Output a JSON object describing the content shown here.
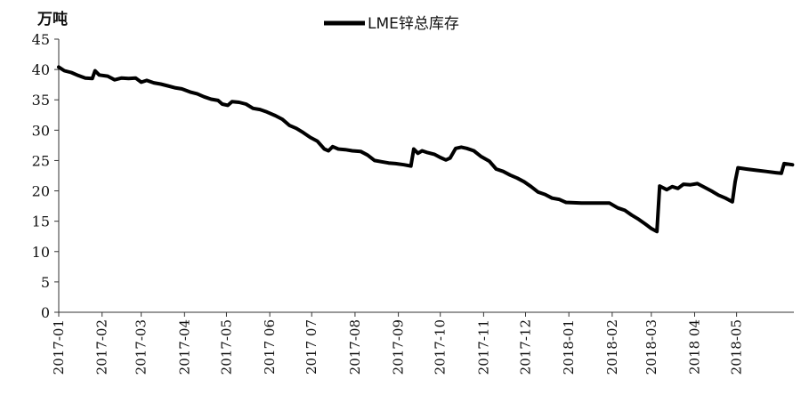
{
  "chart_data": {
    "type": "line",
    "unit_label": "万吨",
    "ylim": [
      0,
      45
    ],
    "y_ticks": [
      0,
      5,
      10,
      15,
      20,
      25,
      30,
      35,
      40,
      45
    ],
    "x_tick_labels": [
      "2017-01",
      "2017-02",
      "2017-03",
      "2017-04",
      "2017-05",
      "2017 06",
      "2017 07",
      "2017-08",
      "2017-09",
      "2017-10",
      "2017-11",
      "2017-12",
      "2018-01",
      "2018-02",
      "2018-03",
      "2018 04",
      "2018-05"
    ],
    "legend": {
      "position": "top-center",
      "entries": [
        "LME锌总库存"
      ]
    },
    "grid": false,
    "series": [
      {
        "name": "LME锌总库存",
        "color": "#000000",
        "points": [
          [
            "2017-01-01",
            40.4
          ],
          [
            "2017-01-05",
            39.8
          ],
          [
            "2017-01-10",
            39.5
          ],
          [
            "2017-01-15",
            39.0
          ],
          [
            "2017-01-20",
            38.6
          ],
          [
            "2017-01-25",
            38.5
          ],
          [
            "2017-01-27",
            39.8
          ],
          [
            "2017-01-30",
            39.1
          ],
          [
            "2017-02-05",
            38.9
          ],
          [
            "2017-02-10",
            38.3
          ],
          [
            "2017-02-15",
            38.6
          ],
          [
            "2017-02-20",
            38.5
          ],
          [
            "2017-02-25",
            38.6
          ],
          [
            "2017-03-01",
            37.9
          ],
          [
            "2017-03-05",
            38.2
          ],
          [
            "2017-03-10",
            37.8
          ],
          [
            "2017-03-15",
            37.6
          ],
          [
            "2017-03-20",
            37.3
          ],
          [
            "2017-03-25",
            37.0
          ],
          [
            "2017-03-30",
            36.8
          ],
          [
            "2017-04-05",
            36.3
          ],
          [
            "2017-04-10",
            36.0
          ],
          [
            "2017-04-15",
            35.5
          ],
          [
            "2017-04-20",
            35.1
          ],
          [
            "2017-04-25",
            34.9
          ],
          [
            "2017-04-28",
            34.3
          ],
          [
            "2017-05-02",
            34.1
          ],
          [
            "2017-05-05",
            34.7
          ],
          [
            "2017-05-10",
            34.6
          ],
          [
            "2017-05-15",
            34.3
          ],
          [
            "2017-05-20",
            33.6
          ],
          [
            "2017-05-25",
            33.4
          ],
          [
            "2017-05-30",
            33.0
          ],
          [
            "2017-06-05",
            32.4
          ],
          [
            "2017-06-10",
            31.8
          ],
          [
            "2017-06-15",
            30.8
          ],
          [
            "2017-06-20",
            30.3
          ],
          [
            "2017-06-25",
            29.6
          ],
          [
            "2017-06-30",
            28.8
          ],
          [
            "2017-07-05",
            28.2
          ],
          [
            "2017-07-10",
            26.9
          ],
          [
            "2017-07-13",
            26.6
          ],
          [
            "2017-07-16",
            27.3
          ],
          [
            "2017-07-20",
            26.9
          ],
          [
            "2017-07-25",
            26.8
          ],
          [
            "2017-07-30",
            26.6
          ],
          [
            "2017-08-05",
            26.5
          ],
          [
            "2017-08-10",
            25.9
          ],
          [
            "2017-08-15",
            25.0
          ],
          [
            "2017-08-20",
            24.8
          ],
          [
            "2017-08-25",
            24.6
          ],
          [
            "2017-08-30",
            24.5
          ],
          [
            "2017-09-05",
            24.3
          ],
          [
            "2017-09-10",
            24.1
          ],
          [
            "2017-09-12",
            26.9
          ],
          [
            "2017-09-15",
            26.2
          ],
          [
            "2017-09-18",
            26.6
          ],
          [
            "2017-09-22",
            26.3
          ],
          [
            "2017-09-27",
            26.0
          ],
          [
            "2017-10-01",
            25.5
          ],
          [
            "2017-10-05",
            25.1
          ],
          [
            "2017-10-08",
            25.4
          ],
          [
            "2017-10-12",
            27.0
          ],
          [
            "2017-10-16",
            27.2
          ],
          [
            "2017-10-20",
            27.0
          ],
          [
            "2017-10-25",
            26.6
          ],
          [
            "2017-10-30",
            25.7
          ],
          [
            "2017-11-05",
            24.9
          ],
          [
            "2017-11-10",
            23.6
          ],
          [
            "2017-11-15",
            23.2
          ],
          [
            "2017-11-20",
            22.6
          ],
          [
            "2017-11-25",
            22.1
          ],
          [
            "2017-11-30",
            21.5
          ],
          [
            "2017-12-05",
            20.7
          ],
          [
            "2017-12-10",
            19.8
          ],
          [
            "2017-12-15",
            19.4
          ],
          [
            "2017-12-20",
            18.8
          ],
          [
            "2017-12-25",
            18.6
          ],
          [
            "2017-12-30",
            18.1
          ],
          [
            "2018-01-10",
            18.0
          ],
          [
            "2018-01-20",
            18.0
          ],
          [
            "2018-01-30",
            18.0
          ],
          [
            "2018-02-05",
            17.2
          ],
          [
            "2018-02-10",
            16.8
          ],
          [
            "2018-02-15",
            16.0
          ],
          [
            "2018-02-20",
            15.3
          ],
          [
            "2018-02-25",
            14.5
          ],
          [
            "2018-03-01",
            13.8
          ],
          [
            "2018-03-05",
            13.3
          ],
          [
            "2018-03-07",
            20.8
          ],
          [
            "2018-03-12",
            20.2
          ],
          [
            "2018-03-16",
            20.7
          ],
          [
            "2018-03-20",
            20.4
          ],
          [
            "2018-03-24",
            21.1
          ],
          [
            "2018-03-29",
            21.0
          ],
          [
            "2018-04-03",
            21.2
          ],
          [
            "2018-04-08",
            20.6
          ],
          [
            "2018-04-13",
            20.0
          ],
          [
            "2018-04-18",
            19.3
          ],
          [
            "2018-04-23",
            18.8
          ],
          [
            "2018-04-28",
            18.2
          ],
          [
            "2018-04-30",
            21.5
          ],
          [
            "2018-05-02",
            23.8
          ],
          [
            "2018-05-08",
            23.6
          ],
          [
            "2018-05-15",
            23.4
          ],
          [
            "2018-05-22",
            23.2
          ],
          [
            "2018-05-29",
            23.0
          ],
          [
            "2018-06-02",
            22.9
          ],
          [
            "2018-06-04",
            24.5
          ],
          [
            "2018-06-10",
            24.3
          ]
        ]
      }
    ]
  }
}
